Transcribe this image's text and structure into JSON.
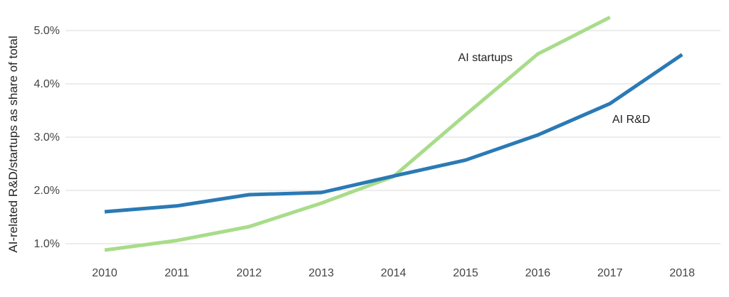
{
  "chart_data": {
    "type": "line",
    "title": "",
    "xlabel": "",
    "ylabel": "AI-related R&D/startups as share of total",
    "x": [
      "2010",
      "2011",
      "2012",
      "2013",
      "2014",
      "2015",
      "2016",
      "2017",
      "2018"
    ],
    "y_ticks": [
      "1.0%",
      "2.0%",
      "3.0%",
      "4.0%",
      "5.0%"
    ],
    "ylim": [
      0.6,
      5.5
    ],
    "grid": true,
    "legend": "inline labels",
    "series": [
      {
        "name": "AI R&D",
        "color": "#2a7ab5",
        "values": [
          1.6,
          1.71,
          1.92,
          1.96,
          2.27,
          2.57,
          3.04,
          3.63,
          4.55
        ]
      },
      {
        "name": "AI startups",
        "color": "#a8dc8a",
        "values": [
          0.88,
          1.06,
          1.32,
          1.76,
          2.26,
          3.42,
          4.56,
          5.25,
          null
        ]
      }
    ]
  }
}
